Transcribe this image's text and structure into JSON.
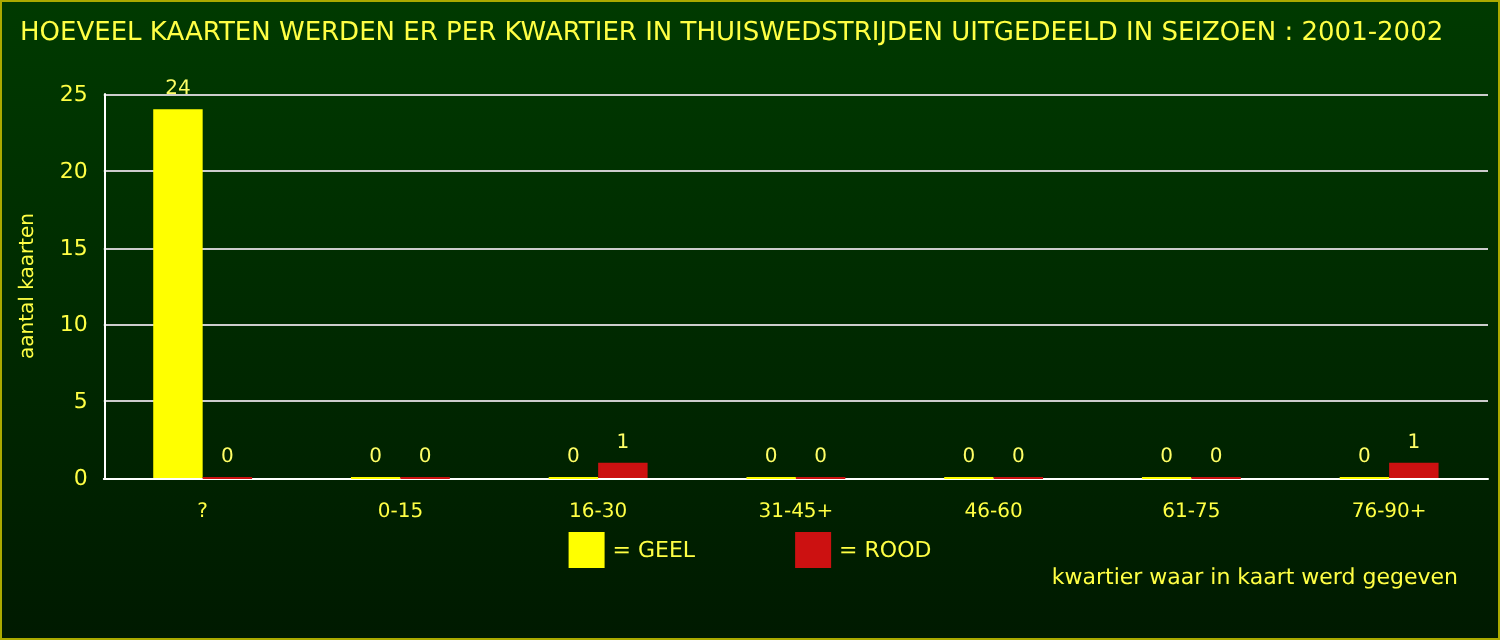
{
  "chart_data": {
    "type": "bar",
    "title": "HOEVEEL KAARTEN WERDEN ER PER KWARTIER IN THUISWEDSTRIJDEN UITGEDEELD IN SEIZOEN : 2001-2002",
    "xlabel": "kwartier waar in kaart werd gegeven",
    "ylabel": "aantal kaarten",
    "categories": [
      "?",
      "0-15",
      "16-30",
      "31-45+",
      "46-60",
      "61-75",
      "76-90+"
    ],
    "series": [
      {
        "name": "= GEEL",
        "color": "#ffff00",
        "values": [
          24,
          0,
          0,
          0,
          0,
          0,
          0
        ]
      },
      {
        "name": "= ROOD",
        "color": "#cc1111",
        "values": [
          0,
          0,
          1,
          0,
          0,
          0,
          1
        ]
      }
    ],
    "ylim": [
      0,
      25
    ],
    "yticks": [
      0,
      5,
      10,
      15,
      20,
      25
    ],
    "grid": "y",
    "legend": "bottom",
    "data_labels": true
  }
}
